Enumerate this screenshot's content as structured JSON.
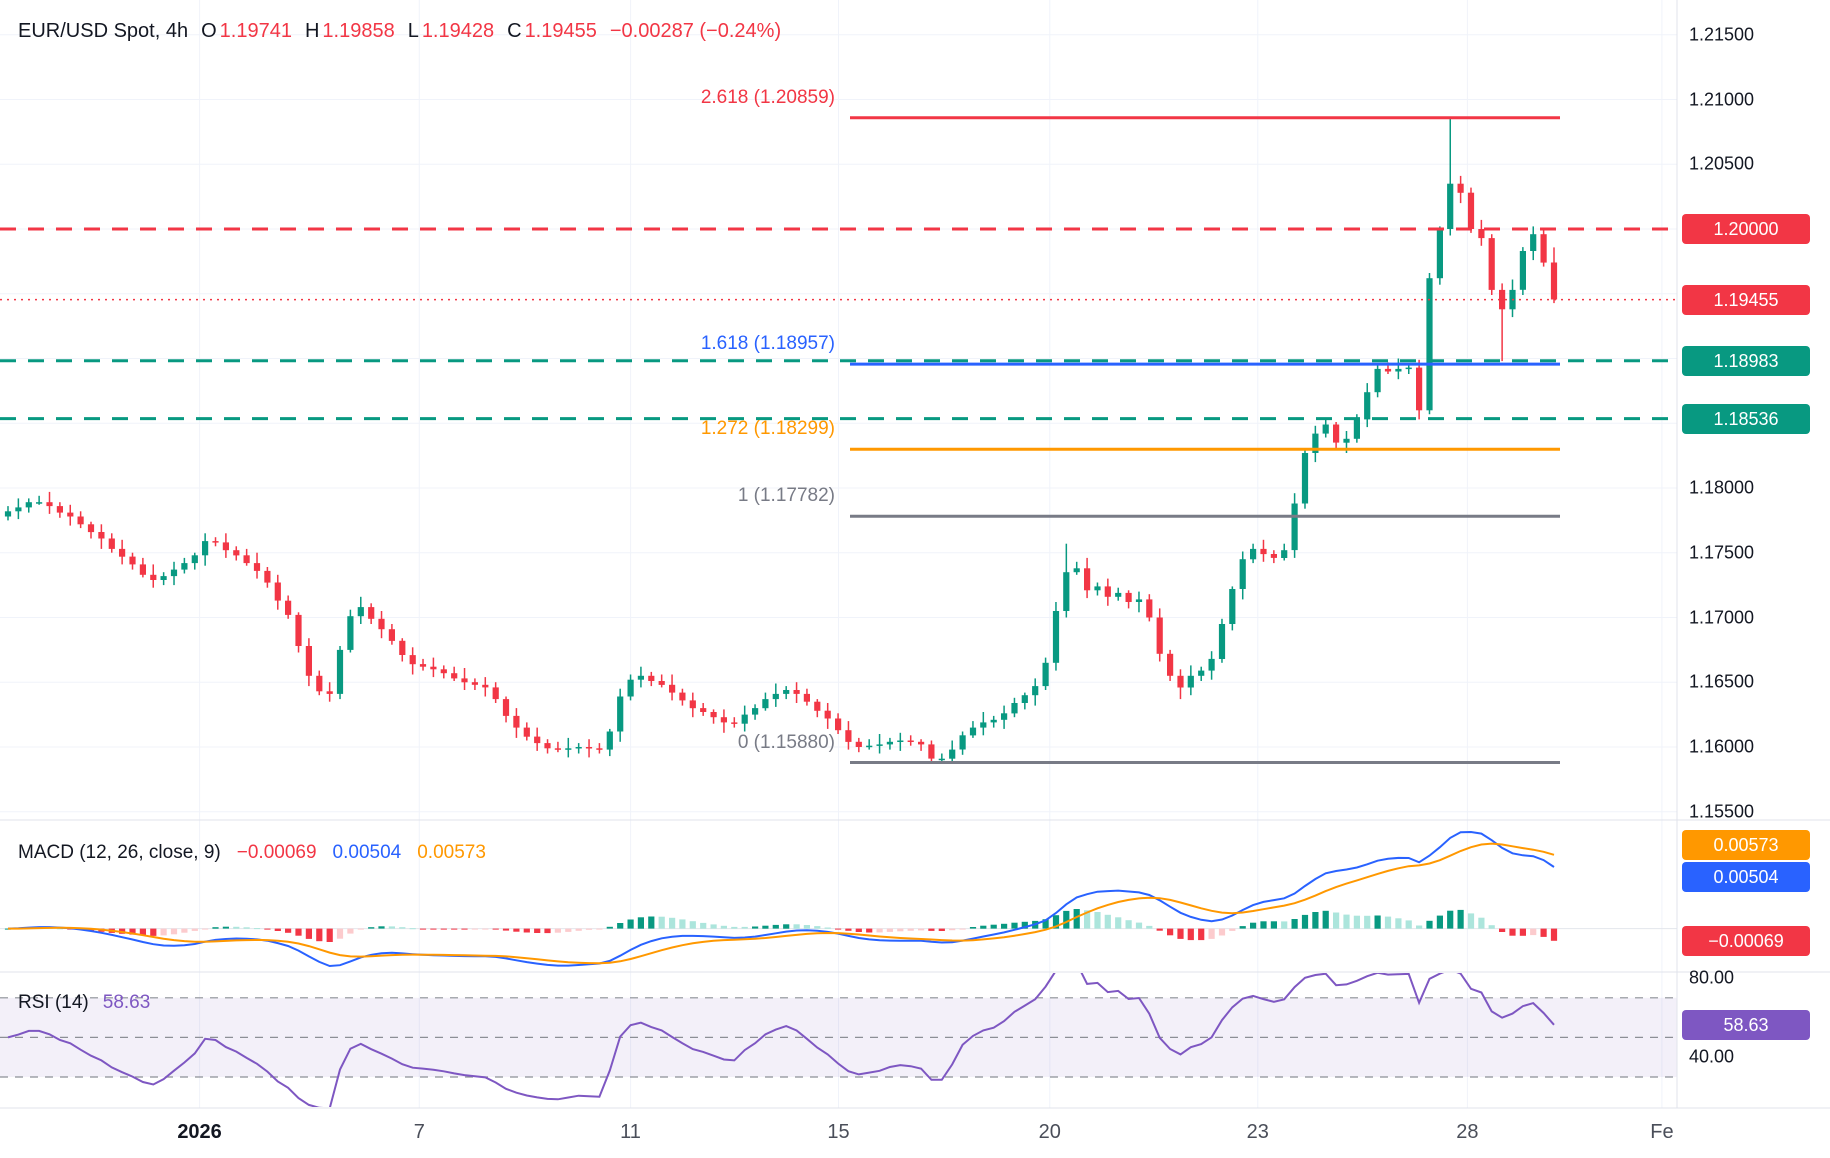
{
  "header": {
    "symbol": "EUR/USD Spot, 4h",
    "ohlc": [
      {
        "key": "O",
        "value": "1.19741"
      },
      {
        "key": "H",
        "value": "1.19858"
      },
      {
        "key": "L",
        "value": "1.19428"
      },
      {
        "key": "C",
        "value": "1.19455"
      }
    ],
    "change": "−0.00287 (−0.24%)",
    "up_color": "#089981",
    "down_color": "#F23645"
  },
  "chart_data": {
    "type": "candlestick",
    "title": "EUR/USD Spot, 4h",
    "interval": "4h",
    "ylim": [
      1.155,
      1.215
    ],
    "last": {
      "open": 1.19741,
      "high": 1.19858,
      "low": 1.19428,
      "close": 1.19455,
      "change": -0.00287,
      "change_pct": -0.24
    },
    "y_axis": {
      "ticks": [
        {
          "label": "1.21500",
          "price": 1.215
        },
        {
          "label": "1.21000",
          "price": 1.21
        },
        {
          "label": "1.20500",
          "price": 1.205
        },
        {
          "label": "1.18000",
          "price": 1.18
        },
        {
          "label": "1.17500",
          "price": 1.175
        },
        {
          "label": "1.17000",
          "price": 1.17
        },
        {
          "label": "1.16500",
          "price": 1.165
        },
        {
          "label": "1.16000",
          "price": 1.16
        },
        {
          "label": "1.15500",
          "price": 1.155
        }
      ],
      "badges": [
        {
          "label": "1.20000",
          "price": 1.2,
          "color": "#F23645"
        },
        {
          "label": "1.19455",
          "price": 1.19455,
          "color": "#F23645"
        },
        {
          "label": "1.18983",
          "price": 1.18983,
          "color": "#089981"
        },
        {
          "label": "1.18536",
          "price": 1.18536,
          "color": "#089981"
        }
      ]
    },
    "time_axis": {
      "labels": [
        {
          "text": "2026",
          "xr": 0.119,
          "bold": true
        },
        {
          "text": "7",
          "xr": 0.25
        },
        {
          "text": "11",
          "xr": 0.376
        },
        {
          "text": "15",
          "xr": 0.5
        },
        {
          "text": "20",
          "xr": 0.626
        },
        {
          "text": "23",
          "xr": 0.75
        },
        {
          "text": "28",
          "xr": 0.875
        },
        {
          "text": "Fe",
          "xr": 0.991
        }
      ]
    },
    "fib_levels": [
      {
        "label": "2.618 (1.20859)",
        "ratio": "2.618",
        "price": 1.20859,
        "color": "#F23645"
      },
      {
        "label": "1.618 (1.18957)",
        "ratio": "1.618",
        "price": 1.18957,
        "color": "#2962FF"
      },
      {
        "label": "1.272 (1.18299)",
        "ratio": "1.272",
        "price": 1.18299,
        "color": "#FF9800"
      },
      {
        "label": "1 (1.17782)",
        "ratio": "1",
        "price": 1.17782,
        "color": "#787B86"
      },
      {
        "label": "0 (1.15880)",
        "ratio": "0",
        "price": 1.1588,
        "color": "#787B86"
      }
    ],
    "alert_lines": [
      {
        "price": 1.2,
        "color": "#F23645",
        "dash": "16,12",
        "width": 3
      },
      {
        "price": 1.19455,
        "color": "#F23645",
        "dash": "2,5",
        "width": 1.5
      },
      {
        "price": 1.18983,
        "color": "#089981",
        "dash": "16,12",
        "width": 3
      },
      {
        "price": 1.18536,
        "color": "#089981",
        "dash": "16,12",
        "width": 3
      }
    ],
    "candles": [
      [
        1.1778,
        1.1786,
        1.1775,
        1.1782
      ],
      [
        1.1782,
        1.1792,
        1.1776,
        1.1785
      ],
      [
        1.1785,
        1.1792,
        1.1781,
        1.1789
      ],
      [
        1.1789,
        1.1794,
        1.1787,
        1.1789
      ],
      [
        1.1789,
        1.1797,
        1.178,
        1.1786
      ],
      [
        1.1786,
        1.1789,
        1.1777,
        1.1781
      ],
      [
        1.1781,
        1.1787,
        1.1771,
        1.1778
      ],
      [
        1.1778,
        1.1782,
        1.1769,
        1.1772
      ],
      [
        1.1772,
        1.1774,
        1.1761,
        1.1766
      ],
      [
        1.1766,
        1.1772,
        1.1753,
        1.1761
      ],
      [
        1.1761,
        1.1765,
        1.175,
        1.1753
      ],
      [
        1.1753,
        1.176,
        1.1741,
        1.1747
      ],
      [
        1.1747,
        1.175,
        1.1737,
        1.1741
      ],
      [
        1.1741,
        1.1746,
        1.1731,
        1.1733
      ],
      [
        1.1733,
        1.1741,
        1.1723,
        1.1729
      ],
      [
        1.1729,
        1.1735,
        1.1725,
        1.1732
      ],
      [
        1.1732,
        1.1743,
        1.1725,
        1.1737
      ],
      [
        1.1737,
        1.1746,
        1.1734,
        1.1742
      ],
      [
        1.1742,
        1.175,
        1.1737,
        1.1748
      ],
      [
        1.1748,
        1.1765,
        1.174,
        1.1759
      ],
      [
        1.1759,
        1.1762,
        1.1755,
        1.1758
      ],
      [
        1.1758,
        1.1765,
        1.1746,
        1.1752
      ],
      [
        1.1752,
        1.1755,
        1.1744,
        1.1748
      ],
      [
        1.1748,
        1.1753,
        1.174,
        1.1742
      ],
      [
        1.1742,
        1.175,
        1.173,
        1.1736
      ],
      [
        1.1736,
        1.1739,
        1.1723,
        1.1727
      ],
      [
        1.1727,
        1.1733,
        1.1706,
        1.1713
      ],
      [
        1.1713,
        1.1717,
        1.1699,
        1.1702
      ],
      [
        1.1702,
        1.1704,
        1.1673,
        1.1678
      ],
      [
        1.1678,
        1.1684,
        1.1647,
        1.1655
      ],
      [
        1.1655,
        1.1659,
        1.164,
        1.1643
      ],
      [
        1.1643,
        1.165,
        1.1635,
        1.1641
      ],
      [
        1.1641,
        1.1678,
        1.1637,
        1.1675
      ],
      [
        1.1675,
        1.1706,
        1.1673,
        1.1701
      ],
      [
        1.1701,
        1.1716,
        1.1695,
        1.1708
      ],
      [
        1.1708,
        1.1711,
        1.1695,
        1.1699
      ],
      [
        1.1699,
        1.1705,
        1.1684,
        1.1691
      ],
      [
        1.1691,
        1.1695,
        1.1679,
        1.1682
      ],
      [
        1.1682,
        1.1684,
        1.1666,
        1.1671
      ],
      [
        1.1671,
        1.1677,
        1.1656,
        1.1664
      ],
      [
        1.1664,
        1.1668,
        1.1659,
        1.1662
      ],
      [
        1.1662,
        1.1669,
        1.1654,
        1.166
      ],
      [
        1.166,
        1.1663,
        1.1653,
        1.1657
      ],
      [
        1.1657,
        1.1662,
        1.1651,
        1.1653
      ],
      [
        1.1653,
        1.1661,
        1.1644,
        1.165
      ],
      [
        1.165,
        1.1653,
        1.1644,
        1.1648
      ],
      [
        1.1648,
        1.1654,
        1.1639,
        1.1646
      ],
      [
        1.1646,
        1.165,
        1.1634,
        1.1637
      ],
      [
        1.1637,
        1.1639,
        1.1619,
        1.1624
      ],
      [
        1.1624,
        1.163,
        1.1607,
        1.1615
      ],
      [
        1.1615,
        1.1619,
        1.1605,
        1.1608
      ],
      [
        1.1608,
        1.1615,
        1.1597,
        1.1603
      ],
      [
        1.1603,
        1.1606,
        1.1595,
        1.1599
      ],
      [
        1.1599,
        1.1604,
        1.1596,
        1.1598
      ],
      [
        1.1598,
        1.1607,
        1.1592,
        1.1599
      ],
      [
        1.1599,
        1.1603,
        1.1595,
        1.16
      ],
      [
        1.16,
        1.1606,
        1.1592,
        1.1599
      ],
      [
        1.1599,
        1.1603,
        1.1595,
        1.1598
      ],
      [
        1.1598,
        1.1614,
        1.1593,
        1.1612
      ],
      [
        1.1612,
        1.1645,
        1.1604,
        1.1639
      ],
      [
        1.1639,
        1.1656,
        1.1636,
        1.1652
      ],
      [
        1.1652,
        1.1662,
        1.1646,
        1.1655
      ],
      [
        1.1655,
        1.1658,
        1.1647,
        1.1651
      ],
      [
        1.1651,
        1.1656,
        1.1646,
        1.1648
      ],
      [
        1.1648,
        1.1656,
        1.1636,
        1.1642
      ],
      [
        1.1642,
        1.1645,
        1.1632,
        1.1636
      ],
      [
        1.1636,
        1.1642,
        1.1623,
        1.163
      ],
      [
        1.163,
        1.1634,
        1.1624,
        1.1627
      ],
      [
        1.1627,
        1.1629,
        1.1618,
        1.1623
      ],
      [
        1.1623,
        1.1629,
        1.1611,
        1.1619
      ],
      [
        1.1619,
        1.1623,
        1.1615,
        1.1618
      ],
      [
        1.1618,
        1.1632,
        1.1612,
        1.1625
      ],
      [
        1.1625,
        1.1633,
        1.1621,
        1.163
      ],
      [
        1.163,
        1.1642,
        1.1628,
        1.1637
      ],
      [
        1.1637,
        1.1649,
        1.1631,
        1.1641
      ],
      [
        1.1641,
        1.1647,
        1.1637,
        1.1644
      ],
      [
        1.1644,
        1.165,
        1.1634,
        1.1641
      ],
      [
        1.1641,
        1.1645,
        1.1632,
        1.1635
      ],
      [
        1.1635,
        1.1637,
        1.1623,
        1.1628
      ],
      [
        1.1628,
        1.1634,
        1.1614,
        1.1622
      ],
      [
        1.1622,
        1.1626,
        1.161,
        1.1613
      ],
      [
        1.1613,
        1.162,
        1.1598,
        1.1604
      ],
      [
        1.1604,
        1.1607,
        1.1596,
        1.16
      ],
      [
        1.16,
        1.1606,
        1.1598,
        1.1601
      ],
      [
        1.1601,
        1.161,
        1.1595,
        1.1602
      ],
      [
        1.1602,
        1.1607,
        1.1598,
        1.1604
      ],
      [
        1.1604,
        1.1611,
        1.1597,
        1.1605
      ],
      [
        1.1605,
        1.1609,
        1.1601,
        1.1604
      ],
      [
        1.1604,
        1.1606,
        1.1597,
        1.1602
      ],
      [
        1.1602,
        1.1605,
        1.1588,
        1.1591
      ],
      [
        1.1591,
        1.1595,
        1.1588,
        1.1591
      ],
      [
        1.1591,
        1.1605,
        1.1589,
        1.1598
      ],
      [
        1.1598,
        1.1612,
        1.1594,
        1.1609
      ],
      [
        1.1609,
        1.162,
        1.1607,
        1.1615
      ],
      [
        1.1615,
        1.1627,
        1.1609,
        1.1619
      ],
      [
        1.1619,
        1.1624,
        1.1615,
        1.1621
      ],
      [
        1.1621,
        1.1632,
        1.1614,
        1.1626
      ],
      [
        1.1626,
        1.1638,
        1.1623,
        1.1634
      ],
      [
        1.1634,
        1.1642,
        1.1629,
        1.164
      ],
      [
        1.164,
        1.1653,
        1.1632,
        1.1647
      ],
      [
        1.1647,
        1.1669,
        1.1644,
        1.1665
      ],
      [
        1.1665,
        1.1712,
        1.1659,
        1.1705
      ],
      [
        1.1705,
        1.1757,
        1.17,
        1.1735
      ],
      [
        1.1735,
        1.1743,
        1.1733,
        1.1738
      ],
      [
        1.1738,
        1.1746,
        1.1715,
        1.1721
      ],
      [
        1.1721,
        1.1727,
        1.1717,
        1.1724
      ],
      [
        1.1724,
        1.173,
        1.1709,
        1.1716
      ],
      [
        1.1716,
        1.1723,
        1.1713,
        1.1719
      ],
      [
        1.1719,
        1.1721,
        1.1707,
        1.1712
      ],
      [
        1.1712,
        1.172,
        1.1704,
        1.1714
      ],
      [
        1.1714,
        1.1718,
        1.1697,
        1.17
      ],
      [
        1.17,
        1.1707,
        1.1666,
        1.1672
      ],
      [
        1.1672,
        1.1675,
        1.1651,
        1.1655
      ],
      [
        1.1655,
        1.166,
        1.1637,
        1.1646
      ],
      [
        1.1646,
        1.1663,
        1.164,
        1.1655
      ],
      [
        1.1655,
        1.1662,
        1.1651,
        1.1659
      ],
      [
        1.1659,
        1.1674,
        1.1652,
        1.1668
      ],
      [
        1.1668,
        1.1699,
        1.1665,
        1.1695
      ],
      [
        1.1695,
        1.1724,
        1.169,
        1.1722
      ],
      [
        1.1722,
        1.1751,
        1.1714,
        1.1745
      ],
      [
        1.1745,
        1.1757,
        1.1742,
        1.1753
      ],
      [
        1.1753,
        1.176,
        1.1743,
        1.1749
      ],
      [
        1.1749,
        1.1752,
        1.1742,
        1.1746
      ],
      [
        1.1746,
        1.1757,
        1.1744,
        1.1752
      ],
      [
        1.1752,
        1.1796,
        1.1746,
        1.1788
      ],
      [
        1.1788,
        1.183,
        1.1784,
        1.1827
      ],
      [
        1.1827,
        1.1848,
        1.182,
        1.1842
      ],
      [
        1.1842,
        1.1853,
        1.1839,
        1.1849
      ],
      [
        1.1849,
        1.1851,
        1.183,
        1.1835
      ],
      [
        1.1835,
        1.1844,
        1.1827,
        1.1838
      ],
      [
        1.1838,
        1.1857,
        1.1835,
        1.1853
      ],
      [
        1.1853,
        1.1881,
        1.1847,
        1.1874
      ],
      [
        1.1874,
        1.1895,
        1.187,
        1.1892
      ],
      [
        1.1892,
        1.1897,
        1.1888,
        1.189
      ],
      [
        1.189,
        1.19,
        1.1884,
        1.1892
      ],
      [
        1.1892,
        1.1896,
        1.1888,
        1.1893
      ],
      [
        1.1893,
        1.1899,
        1.1853,
        1.186
      ],
      [
        1.186,
        1.1966,
        1.1857,
        1.1962
      ],
      [
        1.1962,
        1.2002,
        1.1957,
        1.2
      ],
      [
        1.2,
        1.2086,
        1.1995,
        1.2035
      ],
      [
        1.2035,
        1.2041,
        1.202,
        1.2028
      ],
      [
        1.2028,
        1.2032,
        1.1997,
        1.2
      ],
      [
        1.2,
        1.2007,
        1.1987,
        1.1993
      ],
      [
        1.1993,
        1.1996,
        1.1949,
        1.1953
      ],
      [
        1.1953,
        1.1958,
        1.1898,
        1.1938
      ],
      [
        1.1938,
        1.1961,
        1.1932,
        1.1953
      ],
      [
        1.1953,
        1.1986,
        1.1949,
        1.1983
      ],
      [
        1.1983,
        1.2002,
        1.1976,
        1.1996
      ],
      [
        1.1996,
        1.2,
        1.1971,
        1.19741
      ],
      [
        1.19741,
        1.19858,
        1.19428,
        1.19455
      ]
    ],
    "indicators": {
      "macd": {
        "title": "MACD (12, 26, close, 9)",
        "fast": 12,
        "slow": 26,
        "source": "close",
        "signal_length": 9,
        "values": [
          {
            "label": "−0.00069",
            "color": "#F23645"
          },
          {
            "label": "0.00504",
            "color": "#2962FF"
          },
          {
            "label": "0.00573",
            "color": "#FF9800"
          }
        ],
        "badges": [
          {
            "label": "0.00573",
            "color": "#FF9800",
            "attach": "signal"
          },
          {
            "label": "0.00504",
            "color": "#2962FF",
            "attach": "macd"
          },
          {
            "label": "−0.00069",
            "color": "#F23645",
            "attach": "hist"
          }
        ],
        "hist_colors": {
          "pos": "#089981",
          "pos_fade": "#ACE5DC",
          "neg": "#F23645",
          "neg_fade": "#FCCBCD"
        }
      },
      "rsi": {
        "title": "RSI (14)",
        "length": 14,
        "value": "58.63",
        "badge": {
          "label": "58.63",
          "color": "#7E57C2"
        },
        "line_color": "#7E57C2",
        "axis_labels": [
          {
            "label": "80.00",
            "value": 80
          },
          {
            "label": "40.00",
            "value": 40
          }
        ],
        "levels": [
          70,
          50,
          30
        ]
      }
    }
  }
}
